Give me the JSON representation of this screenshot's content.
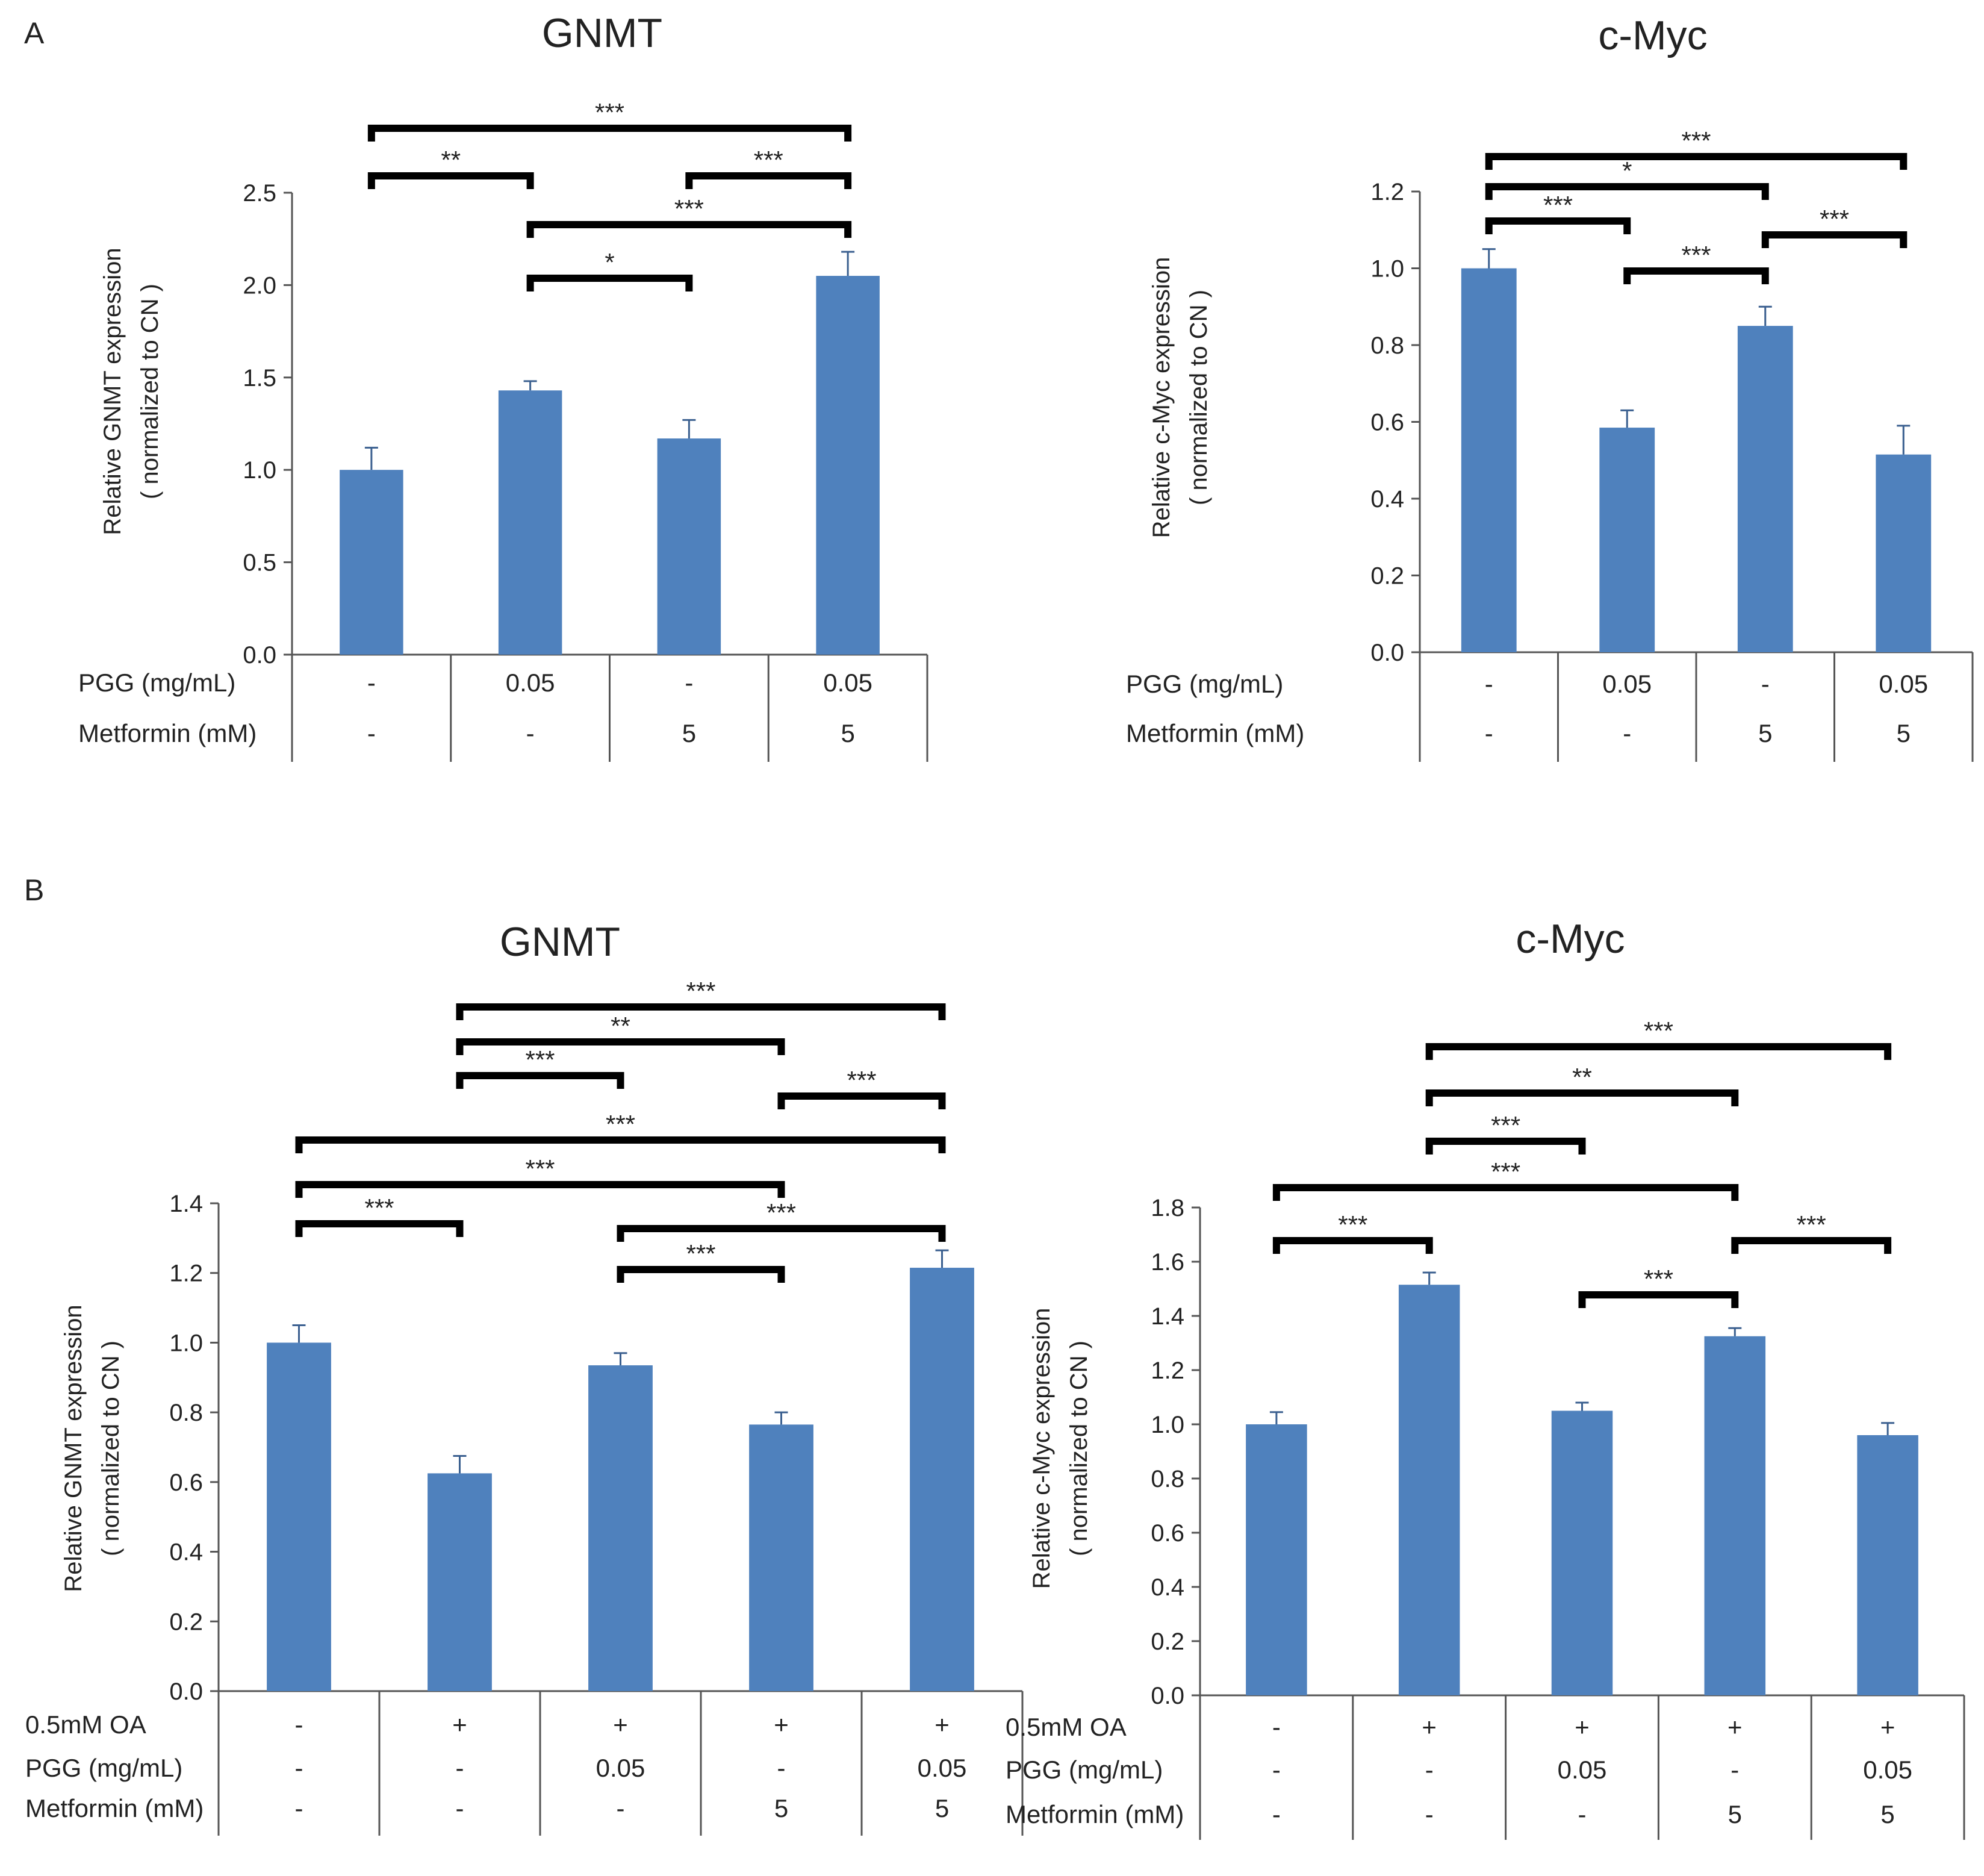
{
  "panel_labels": [
    "A",
    "B"
  ],
  "chart_data": [
    {
      "type": "bar",
      "panel": "A",
      "title": "GNMT",
      "ylabel_line1": "Relative GNMT expression",
      "ylabel_line2": "( normalized to CN )",
      "ylim": [
        0,
        2.5
      ],
      "yticks": [
        "0.0",
        "0.5",
        "1.0",
        "1.5",
        "2.0",
        "2.5"
      ],
      "values": [
        1.0,
        1.43,
        1.17,
        2.05
      ],
      "errors": [
        0.12,
        0.05,
        0.1,
        0.13
      ],
      "conditions": [
        {
          "label": "PGG (mg/mL)",
          "values": [
            "-",
            "0.05",
            "-",
            "0.05"
          ]
        },
        {
          "label": "Metformin (mM)",
          "values": [
            "-",
            "-",
            "5",
            "5"
          ]
        }
      ],
      "significance": [
        {
          "from": 0,
          "to": 3,
          "label": "***"
        },
        {
          "from": 0,
          "to": 1,
          "label": "**"
        },
        {
          "from": 2,
          "to": 3,
          "label": "***"
        },
        {
          "from": 1,
          "to": 3,
          "label": "***"
        },
        {
          "from": 1,
          "to": 2,
          "label": "*"
        }
      ]
    },
    {
      "type": "bar",
      "panel": "A",
      "title": "c-Myc",
      "ylabel_line1": "Relative c-Myc expression",
      "ylabel_line2": "( normalized to CN )",
      "ylim": [
        0,
        1.2
      ],
      "yticks": [
        "0.0",
        "0.2",
        "0.4",
        "0.6",
        "0.8",
        "1.0",
        "1.2"
      ],
      "values": [
        1.0,
        0.585,
        0.85,
        0.515
      ],
      "errors": [
        0.05,
        0.045,
        0.05,
        0.075
      ],
      "conditions": [
        {
          "label": "PGG (mg/mL)",
          "values": [
            "-",
            "0.05",
            "-",
            "0.05"
          ]
        },
        {
          "label": "Metformin (mM)",
          "values": [
            "-",
            "-",
            "5",
            "5"
          ]
        }
      ],
      "significance": [
        {
          "from": 0,
          "to": 3,
          "label": "***"
        },
        {
          "from": 0,
          "to": 2,
          "label": "*"
        },
        {
          "from": 0,
          "to": 1,
          "label": "***"
        },
        {
          "from": 2,
          "to": 3,
          "label": "***"
        },
        {
          "from": 1,
          "to": 2,
          "label": "***"
        }
      ]
    },
    {
      "type": "bar",
      "panel": "B",
      "title": "GNMT",
      "ylabel_line1": "Relative GNMT expression",
      "ylabel_line2": "( normalized to CN )",
      "ylim": [
        0,
        1.4
      ],
      "yticks": [
        "0.0",
        "0.2",
        "0.4",
        "0.6",
        "0.8",
        "1.0",
        "1.2",
        "1.4"
      ],
      "values": [
        1.0,
        0.625,
        0.935,
        0.765,
        1.215
      ],
      "errors": [
        0.05,
        0.05,
        0.035,
        0.035,
        0.05
      ],
      "conditions": [
        {
          "label": "0.5mM OA",
          "values": [
            "-",
            "+",
            "+",
            "+",
            "+"
          ]
        },
        {
          "label": "PGG (mg/mL)",
          "values": [
            "-",
            "-",
            "0.05",
            "-",
            "0.05"
          ]
        },
        {
          "label": "Metformin (mM)",
          "values": [
            "-",
            "-",
            "-",
            "5",
            "5"
          ]
        }
      ],
      "significance": [
        {
          "from": 1,
          "to": 4,
          "label": "***"
        },
        {
          "from": 1,
          "to": 3,
          "label": "**"
        },
        {
          "from": 1,
          "to": 2,
          "label": "***"
        },
        {
          "from": 3,
          "to": 4,
          "label": "***"
        },
        {
          "from": 0,
          "to": 4,
          "label": "***"
        },
        {
          "from": 0,
          "to": 3,
          "label": "***"
        },
        {
          "from": 0,
          "to": 1,
          "label": "***"
        },
        {
          "from": 2,
          "to": 4,
          "label": "***"
        },
        {
          "from": 2,
          "to": 3,
          "label": "***"
        }
      ]
    },
    {
      "type": "bar",
      "panel": "B",
      "title": "c-Myc",
      "ylabel_line1": "Relative c-Myc expression",
      "ylabel_line2": "( normalized to CN )",
      "ylim": [
        0,
        1.8
      ],
      "yticks": [
        "0.0",
        "0.2",
        "0.4",
        "0.6",
        "0.8",
        "1.0",
        "1.2",
        "1.4",
        "1.6",
        "1.8"
      ],
      "values": [
        1.0,
        1.515,
        1.05,
        1.325,
        0.96
      ],
      "errors": [
        0.045,
        0.045,
        0.03,
        0.03,
        0.045
      ],
      "conditions": [
        {
          "label": "0.5mM OA",
          "values": [
            "-",
            "+",
            "+",
            "+",
            "+"
          ]
        },
        {
          "label": "PGG (mg/mL)",
          "values": [
            "-",
            "-",
            "0.05",
            "-",
            "0.05"
          ]
        },
        {
          "label": "Metformin (mM)",
          "values": [
            "-",
            "-",
            "-",
            "5",
            "5"
          ]
        }
      ],
      "significance": [
        {
          "from": 1,
          "to": 4,
          "label": "***"
        },
        {
          "from": 1,
          "to": 3,
          "label": "**"
        },
        {
          "from": 1,
          "to": 2,
          "label": "***"
        },
        {
          "from": 0,
          "to": 3,
          "label": "***"
        },
        {
          "from": 0,
          "to": 1,
          "label": "***"
        },
        {
          "from": 3,
          "to": 4,
          "label": "***"
        },
        {
          "from": 2,
          "to": 3,
          "label": "***"
        }
      ]
    }
  ]
}
